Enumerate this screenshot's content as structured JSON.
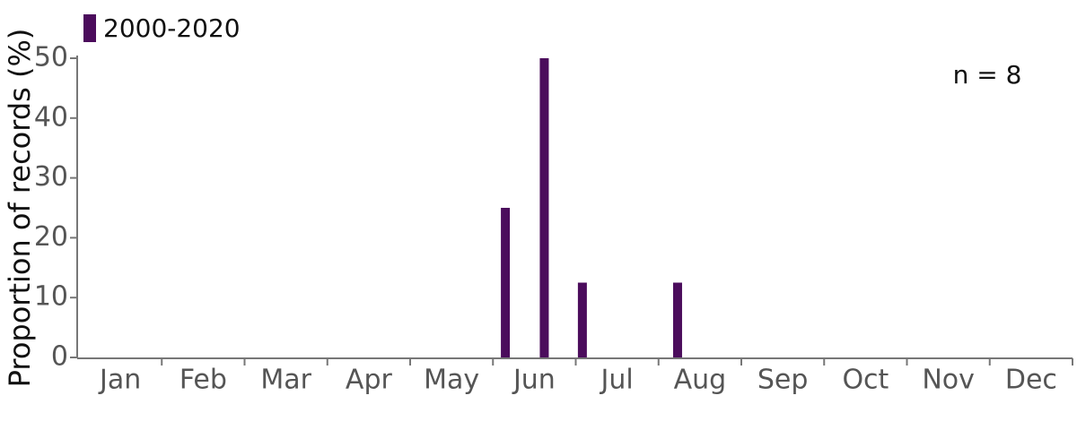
{
  "chart_data": {
    "type": "bar",
    "ylabel": "Proportion of records (%)",
    "annotation": "n = 8",
    "categories": [
      "Jan",
      "Feb",
      "Mar",
      "Apr",
      "May",
      "Jun",
      "Jul",
      "Aug",
      "Sep",
      "Oct",
      "Nov",
      "Dec"
    ],
    "xlim": [
      0,
      12
    ],
    "series": [
      {
        "name": "2000-2020",
        "color": "#4b0c5c",
        "x": [
          5.15,
          5.62,
          6.08,
          7.23
        ],
        "values": [
          25,
          50,
          12.5,
          12.5
        ]
      }
    ],
    "ylim": [
      0,
      50
    ],
    "yticks": [
      0,
      10,
      20,
      30,
      40,
      50
    ],
    "legend": "top-left"
  }
}
